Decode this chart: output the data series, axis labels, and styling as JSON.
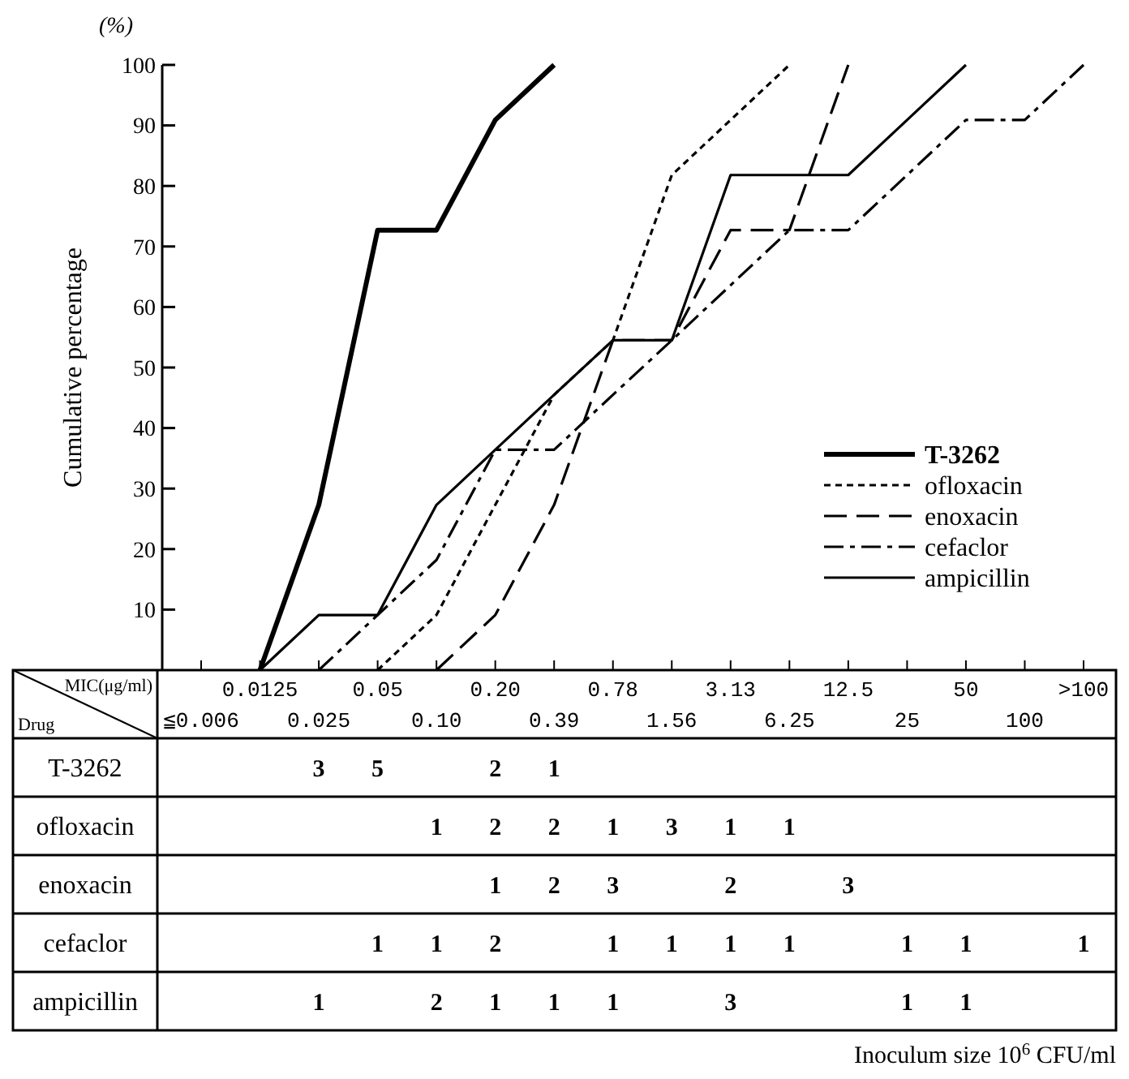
{
  "chart_data": [
    {
      "type": "line",
      "ylabel": "Cumulative percentage",
      "ylim": [
        0,
        100
      ],
      "yticks": [
        10,
        20,
        30,
        40,
        50,
        60,
        70,
        80,
        90,
        100
      ],
      "grid": false,
      "legend": "bottom right",
      "categories": [
        "≦0.006",
        "0.0125",
        "0.025",
        "0.05",
        "0.10",
        "0.20",
        "0.39",
        "0.78",
        "1.56",
        "3.13",
        "6.25",
        "12.5",
        "25",
        "50",
        "100",
        ">100"
      ],
      "annotations": [
        "(%)"
      ],
      "series": [
        {
          "name": "T-3262",
          "color": "#000000",
          "line_style": "solid",
          "values": [
            null,
            0,
            27.3,
            72.7,
            72.7,
            90.9,
            100,
            null,
            null,
            null,
            null,
            null,
            null,
            null,
            null,
            null
          ]
        },
        {
          "name": "ofloxacin",
          "color": "#000000",
          "line_style": "dotted",
          "values": [
            null,
            null,
            null,
            0,
            9.1,
            27.3,
            45.5,
            54.5,
            81.8,
            90.9,
            100,
            null,
            null,
            null,
            null,
            null
          ]
        },
        {
          "name": "enoxacin",
          "color": "#000000",
          "line_style": "dashed",
          "values": [
            null,
            null,
            null,
            null,
            0,
            9.1,
            27.3,
            54.5,
            54.5,
            72.7,
            72.7,
            100,
            null,
            null,
            null,
            null
          ]
        },
        {
          "name": "cefaclor",
          "color": "#000000",
          "line_style": "dashdot",
          "values": [
            null,
            null,
            0,
            9.1,
            18.2,
            36.4,
            36.4,
            45.5,
            54.5,
            63.6,
            72.7,
            72.7,
            81.8,
            90.9,
            90.9,
            100
          ]
        },
        {
          "name": "ampicillin",
          "color": "#000000",
          "line_style": "solid",
          "values": [
            null,
            0,
            9.1,
            9.1,
            27.3,
            36.4,
            45.5,
            54.5,
            54.5,
            81.8,
            81.8,
            81.8,
            90.9,
            100,
            null,
            null
          ]
        }
      ]
    },
    {
      "type": "heatmap",
      "annotations": [
        "MIC(μg/ml)",
        "Drug",
        "Inoculum size 10$^{6}$ CFU/ml"
      ],
      "data_labels": true,
      "categories": [
        null,
        null,
        null,
        null,
        null,
        null,
        null,
        null,
        null,
        null,
        null,
        null,
        null,
        null,
        null,
        null
      ],
      "y_categories": [
        "T-3262",
        "ofloxacin",
        "enoxacin",
        "cefaclor",
        "ampicillin"
      ],
      "cells": [
        [
          null,
          null,
          3,
          5,
          null,
          2,
          1,
          null,
          null,
          null,
          null,
          null,
          null,
          null,
          null,
          null
        ],
        [
          null,
          null,
          null,
          null,
          1,
          2,
          2,
          1,
          3,
          1,
          1,
          null,
          null,
          null,
          null,
          null
        ],
        [
          null,
          null,
          null,
          null,
          null,
          1,
          2,
          3,
          null,
          2,
          null,
          3,
          null,
          null,
          null,
          null
        ],
        [
          null,
          null,
          null,
          1,
          1,
          2,
          null,
          1,
          1,
          1,
          1,
          null,
          1,
          1,
          null,
          1
        ],
        [
          null,
          null,
          1,
          null,
          2,
          1,
          1,
          1,
          null,
          3,
          null,
          null,
          1,
          1,
          null,
          null
        ]
      ]
    }
  ]
}
